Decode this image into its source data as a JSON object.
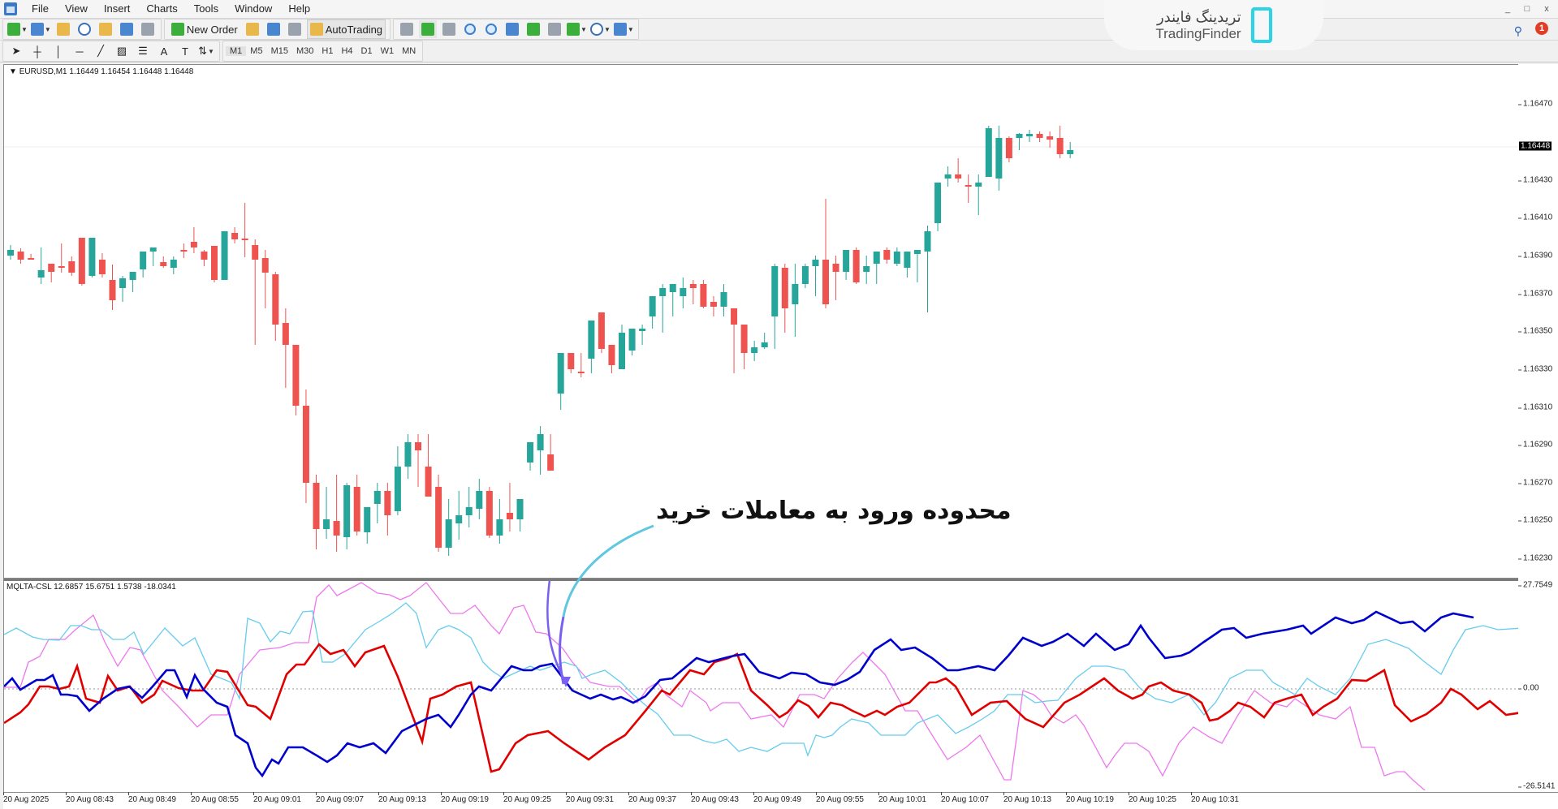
{
  "menubar": {
    "items": [
      "File",
      "View",
      "Insert",
      "Charts",
      "Tools",
      "Window",
      "Help"
    ],
    "window_buttons": [
      "_",
      "□",
      "x"
    ]
  },
  "toolbar": {
    "new_order_label": "New Order",
    "autotrading_label": "AutoTrading",
    "timeframes": [
      "M1",
      "M5",
      "M15",
      "M30",
      "H1",
      "H4",
      "D1",
      "W1",
      "MN"
    ]
  },
  "branding": {
    "persian_name": "تریدینگ فایندر",
    "english_name": "TradingFinder"
  },
  "notifications": {
    "count": "1"
  },
  "chart": {
    "symbol_label": "EURUSD,M1  1.16449 1.16454 1.16448 1.16448",
    "current_price": "1.16448",
    "colors": {
      "bull": "#26a69a",
      "bear": "#ef5350"
    },
    "price_ticks": [
      "1.16470",
      "1.16430",
      "1.16410",
      "1.16390",
      "1.16370",
      "1.16350",
      "1.16330",
      "1.16310",
      "1.16290",
      "1.16270",
      "1.16250",
      "1.16230"
    ]
  },
  "indicator": {
    "label": "MQLTA-CSL 12.6857 15.6751 1.5738 -18.0341",
    "max_label": "27.7549",
    "zero_label": "0.00",
    "min_label": "-26.5141",
    "series_colors": {
      "blue": "#0000cc",
      "red": "#e00000",
      "light_blue": "#66ccee",
      "violet": "#ee77ee"
    }
  },
  "time_axis": {
    "labels": [
      "20 Aug 2025",
      "20 Aug 08:43",
      "20 Aug 08:49",
      "20 Aug 08:55",
      "20 Aug 09:01",
      "20 Aug 09:07",
      "20 Aug 09:13",
      "20 Aug 09:19",
      "20 Aug 09:25",
      "20 Aug 09:31",
      "20 Aug 09:37",
      "20 Aug 09:43",
      "20 Aug 09:49",
      "20 Aug 09:55",
      "20 Aug 10:01",
      "20 Aug 10:07",
      "20 Aug 10:13",
      "20 Aug 10:19",
      "20 Aug 10:25",
      "20 Aug 10:31"
    ]
  },
  "annotation": {
    "text": "محدوده ورود به معاملات خرید"
  }
}
